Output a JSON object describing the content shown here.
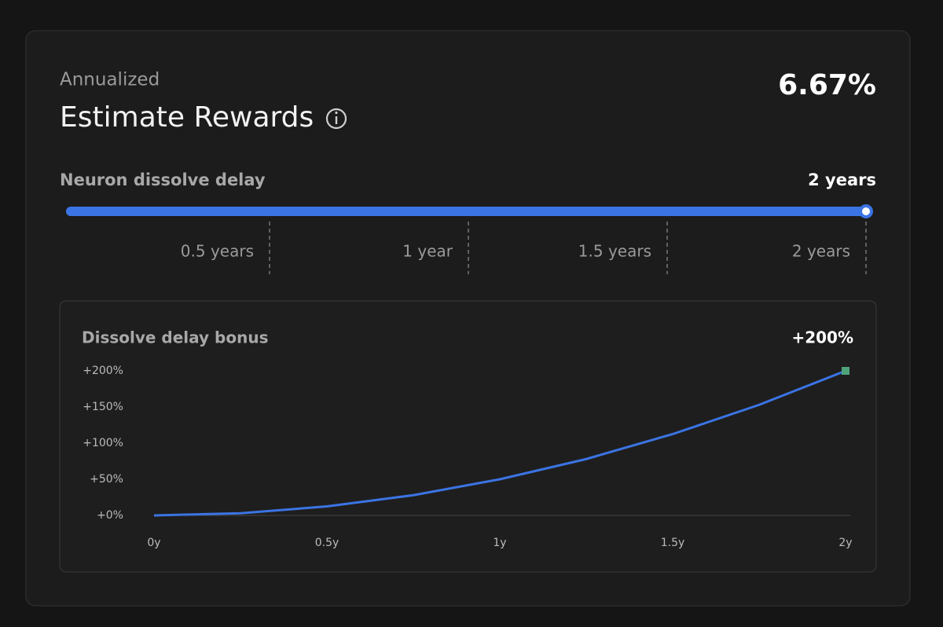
{
  "header": {
    "subtitle": "Annualized",
    "title": "Estimate Rewards",
    "value": "6.67%"
  },
  "slider": {
    "label": "Neuron dissolve delay",
    "range": [
      0,
      2
    ],
    "value": {
      "value": 2,
      "label": "2 years"
    },
    "ticks": [
      {
        "value": 0.5,
        "label": "0.5 years"
      },
      {
        "value": 1,
        "label": "1 year"
      },
      {
        "value": 1.5,
        "label": "1.5 years"
      },
      {
        "value": 2,
        "label": "2 years"
      }
    ]
  },
  "chart_data": {
    "type": "line",
    "title": "Dissolve delay bonus",
    "current_label": "+200%",
    "x": [
      0,
      0.25,
      0.5,
      0.75,
      1,
      1.25,
      1.5,
      1.75,
      2
    ],
    "series": [
      {
        "color": "#3b74e4",
        "values": [
          0,
          3,
          12.5,
          28,
          50,
          78,
          112.5,
          153,
          200
        ]
      }
    ],
    "end_marker_color": "#4ea37a",
    "xlim": [
      0,
      2
    ],
    "xticks": [
      {
        "value": 0,
        "label": "0y"
      },
      {
        "value": 0.5,
        "label": "0.5y"
      },
      {
        "value": 1,
        "label": "1y"
      },
      {
        "value": 1.5,
        "label": "1.5y"
      },
      {
        "value": 2,
        "label": "2y"
      }
    ],
    "ylim": [
      0,
      200
    ],
    "yticks": [
      {
        "value": 0,
        "label": "+0%"
      },
      {
        "value": 50,
        "label": "+50%"
      },
      {
        "value": 100,
        "label": "+100%"
      },
      {
        "value": 150,
        "label": "+150%"
      },
      {
        "value": 200,
        "label": "+200%"
      }
    ]
  }
}
